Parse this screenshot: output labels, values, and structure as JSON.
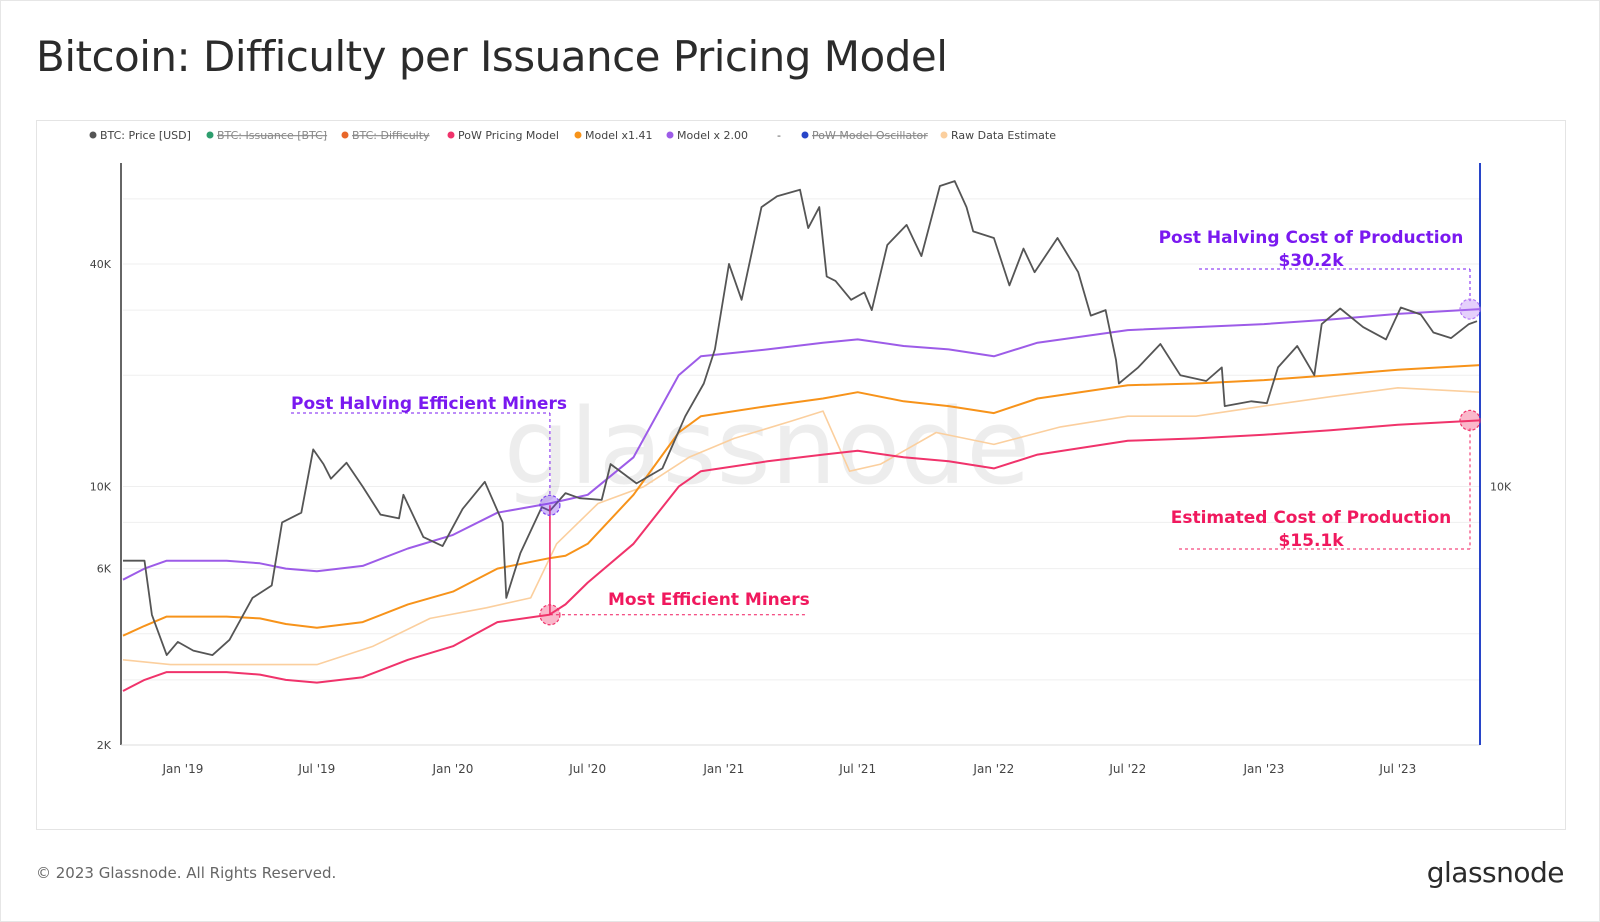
{
  "page": {
    "title": "Bitcoin: Difficulty per Issuance Pricing Model",
    "footer": "© 2023 Glassnode. All Rights Reserved.",
    "brand": "glassnode",
    "watermark": "glassnode"
  },
  "chart_data": {
    "type": "line",
    "title": "Bitcoin: Difficulty per Issuance Pricing Model",
    "y_scale": "log",
    "ylim": [
      2000,
      75000
    ],
    "y_ticks": [
      {
        "value": 2000,
        "label": "2K"
      },
      {
        "value": 6000,
        "label": "6K"
      },
      {
        "value": 10000,
        "label": "10K"
      },
      {
        "value": 40000,
        "label": "40K"
      }
    ],
    "right_axis_ticks": [
      {
        "value": 10000,
        "label": "10K"
      }
    ],
    "xlim": [
      "2018-10-12",
      "2023-10-20"
    ],
    "x_ticks": [
      {
        "date": "2019-01-01",
        "label": "Jan '19"
      },
      {
        "date": "2019-07-01",
        "label": "Jul '19"
      },
      {
        "date": "2020-01-01",
        "label": "Jan '20"
      },
      {
        "date": "2020-07-01",
        "label": "Jul '20"
      },
      {
        "date": "2021-01-01",
        "label": "Jan '21"
      },
      {
        "date": "2021-07-01",
        "label": "Jul '21"
      },
      {
        "date": "2022-01-01",
        "label": "Jan '22"
      },
      {
        "date": "2022-07-01",
        "label": "Jul '22"
      },
      {
        "date": "2023-01-01",
        "label": "Jan '23"
      },
      {
        "date": "2023-07-01",
        "label": "Jul '23"
      }
    ],
    "legend_position": "top",
    "legend": [
      {
        "label": "BTC: Price [USD]",
        "color": "#555555",
        "hidden": false
      },
      {
        "label": "BTC: Issuance [BTC]",
        "color": "#2e9e6e",
        "hidden": true
      },
      {
        "label": "BTC: Difficulty",
        "color": "#e8672a",
        "hidden": true
      },
      {
        "label": "PoW Pricing Model",
        "color": "#f0336b",
        "hidden": false
      },
      {
        "label": "Model x1.41",
        "color": "#f7931a",
        "hidden": false
      },
      {
        "label": "Model x 2.00",
        "color": "#9d5ce8",
        "hidden": false
      },
      {
        "label": "-",
        "color": "",
        "hidden": false
      },
      {
        "label": "PoW Model Oscillator",
        "color": "#2845c8",
        "hidden": true
      },
      {
        "label": "Raw Data Estimate",
        "color": "#fbcf9e",
        "hidden": false
      }
    ],
    "series": [
      {
        "name": "BTC: Price [USD]",
        "color": "#555555",
        "points": [
          [
            "2018-10-12",
            6300
          ],
          [
            "2018-11-10",
            6300
          ],
          [
            "2018-11-20",
            4500
          ],
          [
            "2018-12-10",
            3500
          ],
          [
            "2018-12-25",
            3800
          ],
          [
            "2019-01-15",
            3600
          ],
          [
            "2019-02-10",
            3500
          ],
          [
            "2019-03-05",
            3850
          ],
          [
            "2019-04-05",
            5000
          ],
          [
            "2019-05-01",
            5400
          ],
          [
            "2019-05-15",
            8000
          ],
          [
            "2019-06-10",
            8500
          ],
          [
            "2019-06-26",
            12600
          ],
          [
            "2019-07-10",
            11500
          ],
          [
            "2019-07-20",
            10500
          ],
          [
            "2019-08-10",
            11600
          ],
          [
            "2019-09-01",
            10000
          ],
          [
            "2019-09-25",
            8400
          ],
          [
            "2019-10-20",
            8200
          ],
          [
            "2019-10-26",
            9500
          ],
          [
            "2019-11-22",
            7300
          ],
          [
            "2019-12-18",
            6900
          ],
          [
            "2020-01-14",
            8700
          ],
          [
            "2020-02-13",
            10300
          ],
          [
            "2020-03-08",
            8000
          ],
          [
            "2020-03-13",
            5000
          ],
          [
            "2020-04-01",
            6600
          ],
          [
            "2020-04-30",
            8800
          ],
          [
            "2020-05-11",
            8600
          ],
          [
            "2020-06-01",
            9600
          ],
          [
            "2020-06-20",
            9300
          ],
          [
            "2020-07-20",
            9200
          ],
          [
            "2020-08-01",
            11500
          ],
          [
            "2020-09-05",
            10200
          ],
          [
            "2020-10-10",
            11200
          ],
          [
            "2020-11-10",
            15500
          ],
          [
            "2020-12-05",
            19000
          ],
          [
            "2020-12-20",
            23500
          ],
          [
            "2021-01-08",
            40000
          ],
          [
            "2021-01-25",
            32000
          ],
          [
            "2021-02-21",
            57000
          ],
          [
            "2021-03-14",
            61000
          ],
          [
            "2021-04-14",
            63500
          ],
          [
            "2021-04-25",
            50000
          ],
          [
            "2021-05-10",
            57000
          ],
          [
            "2021-05-20",
            37000
          ],
          [
            "2021-06-01",
            36000
          ],
          [
            "2021-06-22",
            32000
          ],
          [
            "2021-07-10",
            33500
          ],
          [
            "2021-07-20",
            30000
          ],
          [
            "2021-08-10",
            45000
          ],
          [
            "2021-09-05",
            51000
          ],
          [
            "2021-09-25",
            42000
          ],
          [
            "2021-10-20",
            65000
          ],
          [
            "2021-11-09",
            67000
          ],
          [
            "2021-11-25",
            57000
          ],
          [
            "2021-12-04",
            49000
          ],
          [
            "2022-01-01",
            47000
          ],
          [
            "2022-01-22",
            35000
          ],
          [
            "2022-02-10",
            44000
          ],
          [
            "2022-02-25",
            38000
          ],
          [
            "2022-03-28",
            47000
          ],
          [
            "2022-04-25",
            38000
          ],
          [
            "2022-05-12",
            29000
          ],
          [
            "2022-06-01",
            30000
          ],
          [
            "2022-06-15",
            22000
          ],
          [
            "2022-06-19",
            19000
          ],
          [
            "2022-07-15",
            21000
          ],
          [
            "2022-08-14",
            24300
          ],
          [
            "2022-09-10",
            20000
          ],
          [
            "2022-10-15",
            19300
          ],
          [
            "2022-11-05",
            21000
          ],
          [
            "2022-11-09",
            16500
          ],
          [
            "2022-12-15",
            17000
          ],
          [
            "2023-01-05",
            16800
          ],
          [
            "2023-01-20",
            21000
          ],
          [
            "2023-02-15",
            24000
          ],
          [
            "2023-03-10",
            20000
          ],
          [
            "2023-03-20",
            27500
          ],
          [
            "2023-04-14",
            30300
          ],
          [
            "2023-05-15",
            27000
          ],
          [
            "2023-06-15",
            25000
          ],
          [
            "2023-07-05",
            30500
          ],
          [
            "2023-08-01",
            29200
          ],
          [
            "2023-08-18",
            26100
          ],
          [
            "2023-09-11",
            25200
          ],
          [
            "2023-10-05",
            27500
          ],
          [
            "2023-10-16",
            28000
          ]
        ]
      },
      {
        "name": "Model x 2.00",
        "color": "#9d5ce8",
        "points": [
          [
            "2018-10-12",
            5600
          ],
          [
            "2018-11-10",
            6000
          ],
          [
            "2018-12-10",
            6300
          ],
          [
            "2019-01-15",
            6300
          ],
          [
            "2019-03-01",
            6300
          ],
          [
            "2019-04-15",
            6200
          ],
          [
            "2019-05-20",
            6000
          ],
          [
            "2019-07-01",
            5900
          ],
          [
            "2019-09-01",
            6100
          ],
          [
            "2019-11-01",
            6800
          ],
          [
            "2020-01-01",
            7400
          ],
          [
            "2020-03-01",
            8500
          ],
          [
            "2020-05-10",
            9000
          ],
          [
            "2020-06-01",
            9200
          ],
          [
            "2020-07-01",
            9500
          ],
          [
            "2020-09-01",
            12000
          ],
          [
            "2020-11-01",
            20000
          ],
          [
            "2020-12-01",
            22500
          ],
          [
            "2021-03-01",
            23500
          ],
          [
            "2021-05-15",
            24500
          ],
          [
            "2021-07-01",
            25000
          ],
          [
            "2021-09-01",
            24000
          ],
          [
            "2021-11-01",
            23500
          ],
          [
            "2022-01-01",
            22500
          ],
          [
            "2022-03-01",
            24500
          ],
          [
            "2022-07-01",
            26500
          ],
          [
            "2022-10-01",
            27000
          ],
          [
            "2023-01-01",
            27500
          ],
          [
            "2023-04-01",
            28300
          ],
          [
            "2023-07-01",
            29300
          ],
          [
            "2023-10-20",
            30200
          ]
        ]
      },
      {
        "name": "Model x1.41",
        "color": "#f7931a",
        "points": [
          [
            "2018-10-12",
            3950
          ],
          [
            "2018-11-10",
            4200
          ],
          [
            "2018-12-10",
            4450
          ],
          [
            "2019-01-15",
            4450
          ],
          [
            "2019-03-01",
            4450
          ],
          [
            "2019-04-15",
            4400
          ],
          [
            "2019-05-20",
            4250
          ],
          [
            "2019-07-01",
            4150
          ],
          [
            "2019-09-01",
            4300
          ],
          [
            "2019-11-01",
            4800
          ],
          [
            "2020-01-01",
            5200
          ],
          [
            "2020-03-01",
            6000
          ],
          [
            "2020-05-10",
            6400
          ],
          [
            "2020-06-01",
            6500
          ],
          [
            "2020-07-01",
            7000
          ],
          [
            "2020-09-01",
            9500
          ],
          [
            "2020-11-01",
            14000
          ],
          [
            "2020-12-01",
            15500
          ],
          [
            "2021-03-01",
            16500
          ],
          [
            "2021-05-15",
            17300
          ],
          [
            "2021-07-01",
            18000
          ],
          [
            "2021-09-01",
            17000
          ],
          [
            "2021-11-01",
            16500
          ],
          [
            "2022-01-01",
            15800
          ],
          [
            "2022-03-01",
            17300
          ],
          [
            "2022-07-01",
            18800
          ],
          [
            "2022-10-01",
            19000
          ],
          [
            "2023-01-01",
            19400
          ],
          [
            "2023-04-01",
            20000
          ],
          [
            "2023-07-01",
            20700
          ],
          [
            "2023-10-20",
            21300
          ]
        ]
      },
      {
        "name": "PoW Pricing Model",
        "color": "#f0336b",
        "points": [
          [
            "2018-10-12",
            2800
          ],
          [
            "2018-11-10",
            3000
          ],
          [
            "2018-12-10",
            3150
          ],
          [
            "2019-01-15",
            3150
          ],
          [
            "2019-03-01",
            3150
          ],
          [
            "2019-04-15",
            3100
          ],
          [
            "2019-05-20",
            3000
          ],
          [
            "2019-07-01",
            2950
          ],
          [
            "2019-09-01",
            3050
          ],
          [
            "2019-11-01",
            3400
          ],
          [
            "2020-01-01",
            3700
          ],
          [
            "2020-03-01",
            4300
          ],
          [
            "2020-05-10",
            4500
          ],
          [
            "2020-06-01",
            4800
          ],
          [
            "2020-07-01",
            5500
          ],
          [
            "2020-09-01",
            7000
          ],
          [
            "2020-11-01",
            10000
          ],
          [
            "2020-12-01",
            11000
          ],
          [
            "2021-03-01",
            11700
          ],
          [
            "2021-05-15",
            12200
          ],
          [
            "2021-07-01",
            12500
          ],
          [
            "2021-09-01",
            12000
          ],
          [
            "2021-11-01",
            11700
          ],
          [
            "2022-01-01",
            11200
          ],
          [
            "2022-03-01",
            12200
          ],
          [
            "2022-07-01",
            13300
          ],
          [
            "2022-10-01",
            13500
          ],
          [
            "2023-01-01",
            13800
          ],
          [
            "2023-04-01",
            14200
          ],
          [
            "2023-07-01",
            14700
          ],
          [
            "2023-10-20",
            15100
          ]
        ]
      },
      {
        "name": "Raw Data Estimate",
        "color": "#fbcf9e",
        "points": [
          [
            "2018-10-12",
            3400
          ],
          [
            "2018-12-15",
            3300
          ],
          [
            "2019-02-15",
            3300
          ],
          [
            "2019-05-01",
            3300
          ],
          [
            "2019-07-01",
            3300
          ],
          [
            "2019-09-15",
            3700
          ],
          [
            "2019-12-01",
            4400
          ],
          [
            "2020-02-15",
            4700
          ],
          [
            "2020-04-15",
            5000
          ],
          [
            "2020-05-20",
            7000
          ],
          [
            "2020-07-15",
            9000
          ],
          [
            "2020-09-15",
            10000
          ],
          [
            "2020-11-15",
            12000
          ],
          [
            "2021-01-15",
            13500
          ],
          [
            "2021-04-01",
            15000
          ],
          [
            "2021-05-15",
            16000
          ],
          [
            "2021-06-20",
            11000
          ],
          [
            "2021-08-01",
            11500
          ],
          [
            "2021-10-15",
            14000
          ],
          [
            "2022-01-01",
            13000
          ],
          [
            "2022-04-01",
            14500
          ],
          [
            "2022-07-01",
            15500
          ],
          [
            "2022-10-01",
            15500
          ],
          [
            "2023-01-01",
            16500
          ],
          [
            "2023-04-01",
            17500
          ],
          [
            "2023-07-01",
            18500
          ],
          [
            "2023-10-20",
            18000
          ]
        ]
      }
    ],
    "markers": [
      {
        "date": "2020-05-11",
        "value": 8900,
        "color": "#7a3ff0"
      },
      {
        "date": "2020-05-11",
        "value": 4500,
        "color": "#f0336b"
      },
      {
        "date": "2023-10-20",
        "value": 30200,
        "color": "#b477f5"
      },
      {
        "date": "2023-10-20",
        "value": 15100,
        "color": "#f0336b"
      }
    ],
    "annotations": [
      {
        "text": "Post Halving Efficient Miners",
        "color": "#7a19f0"
      },
      {
        "text": "Most Efficient Miners",
        "color": "#f0195e"
      },
      {
        "text": "Post Halving Cost of Production",
        "color": "#7a19f0"
      },
      {
        "text": "$30.2k",
        "color": "#7a19f0"
      },
      {
        "text": "Estimated Cost of Production",
        "color": "#f0195e"
      },
      {
        "text": "$15.1k",
        "color": "#f0195e"
      }
    ],
    "marker_line_date": "2023-10-20"
  }
}
